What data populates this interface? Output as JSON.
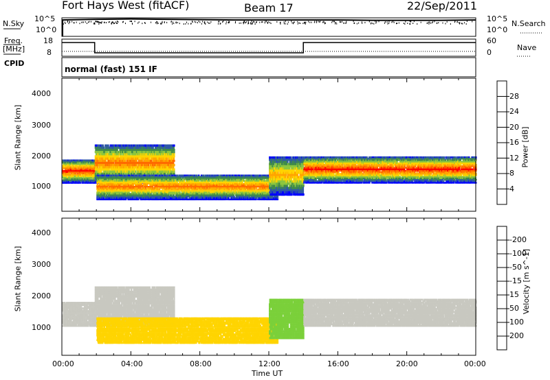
{
  "header": {
    "title": "Fort Hays West (fitACF)",
    "beam": "Beam 17",
    "date": "22/Sep/2011"
  },
  "top_panels": {
    "nsky_label": "N.Sky",
    "nsky_ticks": [
      "10^5",
      "10^0"
    ],
    "nsky_right_ticks": [
      "10^5",
      "10^0"
    ],
    "nsearch_label": "N.Search",
    "freq_label_1": "Freq.",
    "freq_label_2": "[MHz]",
    "freq_ticks": [
      "18",
      "8"
    ],
    "nave_ticks": [
      "60",
      "0"
    ],
    "nave_label": "Nave",
    "cpid_label": "CPID",
    "cpid_value": "normal (fast) 151 IF"
  },
  "axes": {
    "ylabel": "Slant Range [km]",
    "xlabel": "Time UT",
    "yticks": [
      "1000",
      "2000",
      "3000",
      "4000"
    ],
    "xticks": [
      "00:00",
      "04:00",
      "08:00",
      "12:00",
      "16:00",
      "20:00",
      "00:00"
    ]
  },
  "colorbars": {
    "power": {
      "label": "Power [dB]",
      "ticks": [
        "4",
        "8",
        "12",
        "16",
        "20",
        "24",
        "28"
      ],
      "colors": [
        "#0000ff",
        "#2f58a8",
        "#3f8a4a",
        "#8cc63f",
        "#ffd400",
        "#ffa500",
        "#ff6a00",
        "#ff0000"
      ]
    },
    "velocity": {
      "label": "Velocity [m s^-1]",
      "ticks": [
        "200",
        "100",
        "50",
        "15",
        "-15",
        "-50",
        "-100",
        "-200"
      ],
      "colors": [
        "#1a3aa8",
        "#2f58a8",
        "#3f8a4a",
        "#7bd03a",
        "#c8c8c0",
        "#ffd400",
        "#ffa500",
        "#ff6a00",
        "#ff0000"
      ]
    }
  },
  "chart_data": [
    {
      "type": "line",
      "panel": "N.Sky / N.Search",
      "x": [
        0,
        2,
        4,
        6,
        8,
        10,
        12,
        14,
        16,
        18,
        20,
        22,
        24
      ],
      "y_log10": [
        4.6,
        4.8,
        4.9,
        4.8,
        4.7,
        4.6,
        4.6,
        4.6,
        4.6,
        4.5,
        4.5,
        4.5,
        4.6
      ],
      "xlim": [
        0,
        24
      ]
    },
    {
      "type": "line",
      "panel": "Freq / Nave",
      "series": [
        {
          "name": "Freq",
          "x": [
            0,
            1.9,
            1.9,
            14,
            14,
            24
          ],
          "values": [
            16,
            16,
            10,
            10,
            16,
            16
          ]
        },
        {
          "name": "Nave",
          "x": [
            0,
            24
          ],
          "values": [
            17,
            17
          ]
        }
      ],
      "ylim_freq": [
        8,
        18
      ],
      "ylim_nave": [
        0,
        60
      ]
    },
    {
      "type": "heatmap",
      "panel": "Power",
      "xlabel": "Time UT",
      "ylabel": "Slant Range [km]",
      "xlim": [
        0,
        24
      ],
      "ylim": [
        180,
        4600
      ],
      "bands": [
        {
          "t": [
            0,
            1.9
          ],
          "range": [
            1100,
            1900
          ],
          "peak_db": 28
        },
        {
          "t": [
            1.9,
            6.5
          ],
          "range": [
            1100,
            2400
          ],
          "peak_db": 24
        },
        {
          "t": [
            2.0,
            12.5
          ],
          "range": [
            550,
            1400
          ],
          "peak_db": 24
        },
        {
          "t": [
            12.0,
            14.0
          ],
          "range": [
            700,
            2000
          ],
          "peak_db": 20
        },
        {
          "t": [
            14.0,
            24
          ],
          "range": [
            1100,
            2000
          ],
          "peak_db": 28
        }
      ]
    },
    {
      "type": "heatmap",
      "panel": "Velocity",
      "xlabel": "Time UT",
      "ylabel": "Slant Range [km]",
      "xlim": [
        0,
        24
      ],
      "ylim": [
        180,
        4600
      ],
      "bands": [
        {
          "t": [
            0,
            1.9
          ],
          "range": [
            1100,
            1900
          ],
          "velocity": 0
        },
        {
          "t": [
            1.9,
            6.5
          ],
          "range": [
            1100,
            2400
          ],
          "velocity": 0
        },
        {
          "t": [
            2.0,
            12.5
          ],
          "range": [
            550,
            1400
          ],
          "velocity": -30
        },
        {
          "t": [
            12.0,
            14.0
          ],
          "range": [
            700,
            2000
          ],
          "velocity": 30
        },
        {
          "t": [
            14.0,
            24
          ],
          "range": [
            1100,
            2000
          ],
          "velocity": 0
        }
      ]
    }
  ]
}
